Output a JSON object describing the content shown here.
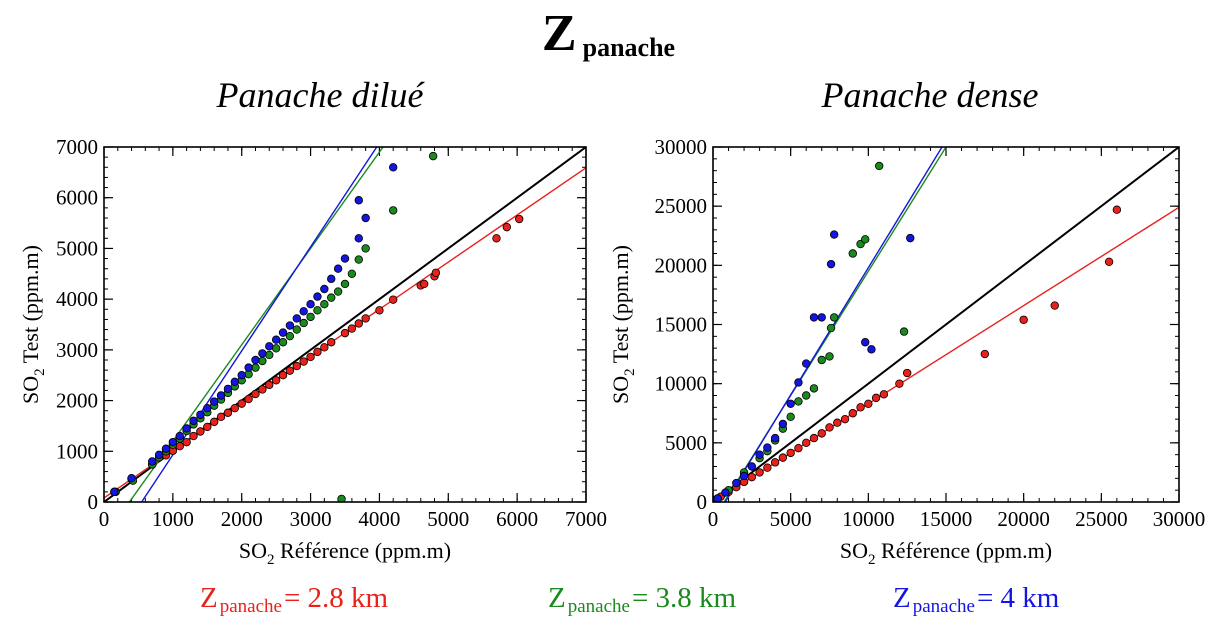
{
  "title": {
    "main": "Z",
    "sub": "panache"
  },
  "chart_data": [
    {
      "type": "scatter",
      "title": "Panache dilué",
      "xlabel_prefix": "SO",
      "xlabel_sub": "2",
      "xlabel_suffix": " Référence (ppm.m)",
      "ylabel_prefix": "SO",
      "ylabel_sub": "2",
      "ylabel_suffix": " Test (ppm.m)",
      "xlim": [
        0,
        7000
      ],
      "ylim": [
        0,
        7000
      ],
      "xticks": [
        0,
        1000,
        2000,
        3000,
        4000,
        5000,
        6000,
        7000
      ],
      "yticks": [
        0,
        1000,
        2000,
        3000,
        4000,
        5000,
        6000,
        7000
      ],
      "series": [
        {
          "name": "Z panache = 2.8 km",
          "color": "#e8211b",
          "slope": 0.93,
          "intercept": 80,
          "points": [
            [
              150,
              200
            ],
            [
              400,
              450
            ],
            [
              700,
              740
            ],
            [
              900,
              920
            ],
            [
              1000,
              1010
            ],
            [
              1100,
              1100
            ],
            [
              1200,
              1180
            ],
            [
              1300,
              1300
            ],
            [
              1400,
              1390
            ],
            [
              1500,
              1480
            ],
            [
              1600,
              1580
            ],
            [
              1700,
              1680
            ],
            [
              1800,
              1760
            ],
            [
              1900,
              1850
            ],
            [
              2000,
              1940
            ],
            [
              2100,
              2030
            ],
            [
              2200,
              2130
            ],
            [
              2300,
              2220
            ],
            [
              2400,
              2310
            ],
            [
              2500,
              2400
            ],
            [
              2600,
              2500
            ],
            [
              2700,
              2590
            ],
            [
              2800,
              2680
            ],
            [
              2900,
              2770
            ],
            [
              3000,
              2860
            ],
            [
              3100,
              2960
            ],
            [
              3200,
              3050
            ],
            [
              3300,
              3150
            ],
            [
              3500,
              3330
            ],
            [
              3600,
              3420
            ],
            [
              3700,
              3520
            ],
            [
              3800,
              3620
            ],
            [
              4000,
              3780
            ],
            [
              4200,
              3990
            ],
            [
              4600,
              4270
            ],
            [
              4650,
              4300
            ],
            [
              4800,
              4450
            ],
            [
              4820,
              4520
            ],
            [
              5700,
              5200
            ],
            [
              5850,
              5420
            ],
            [
              6030,
              5580
            ]
          ]
        },
        {
          "name": "Z panache = 3.8 km",
          "color": "#1a8a1f",
          "slope": 1.9,
          "intercept": -700,
          "points": [
            [
              170,
              200
            ],
            [
              420,
              420
            ],
            [
              700,
              740
            ],
            [
              800,
              880
            ],
            [
              900,
              1000
            ],
            [
              1000,
              1130
            ],
            [
              1100,
              1250
            ],
            [
              1200,
              1400
            ],
            [
              1300,
              1530
            ],
            [
              1400,
              1650
            ],
            [
              1500,
              1770
            ],
            [
              1600,
              1900
            ],
            [
              1700,
              2020
            ],
            [
              1800,
              2150
            ],
            [
              1900,
              2280
            ],
            [
              2000,
              2400
            ],
            [
              2100,
              2520
            ],
            [
              2200,
              2650
            ],
            [
              2300,
              2780
            ],
            [
              2400,
              2900
            ],
            [
              2500,
              3030
            ],
            [
              2600,
              3150
            ],
            [
              2700,
              3270
            ],
            [
              2800,
              3400
            ],
            [
              2900,
              3530
            ],
            [
              3000,
              3650
            ],
            [
              3100,
              3780
            ],
            [
              3200,
              3900
            ],
            [
              3300,
              4030
            ],
            [
              3400,
              4150
            ],
            [
              3500,
              4300
            ],
            [
              3600,
              4500
            ],
            [
              3700,
              4780
            ],
            [
              3800,
              5000
            ],
            [
              4200,
              5750
            ],
            [
              4780,
              6820
            ],
            [
              3450,
              60
            ]
          ]
        },
        {
          "name": "Z panache = 4 km",
          "color": "#1515e0",
          "slope": 2.05,
          "intercept": -1120,
          "points": [
            [
              150,
              200
            ],
            [
              400,
              470
            ],
            [
              700,
              800
            ],
            [
              800,
              930
            ],
            [
              900,
              1050
            ],
            [
              1000,
              1180
            ],
            [
              1100,
              1300
            ],
            [
              1200,
              1450
            ],
            [
              1300,
              1600
            ],
            [
              1400,
              1720
            ],
            [
              1500,
              1850
            ],
            [
              1600,
              1980
            ],
            [
              1700,
              2100
            ],
            [
              1800,
              2230
            ],
            [
              1900,
              2370
            ],
            [
              2000,
              2500
            ],
            [
              2100,
              2650
            ],
            [
              2200,
              2800
            ],
            [
              2300,
              2930
            ],
            [
              2400,
              3070
            ],
            [
              2500,
              3200
            ],
            [
              2600,
              3340
            ],
            [
              2700,
              3480
            ],
            [
              2800,
              3620
            ],
            [
              2900,
              3760
            ],
            [
              3000,
              3900
            ],
            [
              3100,
              4050
            ],
            [
              3200,
              4200
            ],
            [
              3300,
              4400
            ],
            [
              3400,
              4600
            ],
            [
              3500,
              4800
            ],
            [
              3700,
              5200
            ],
            [
              3800,
              5600
            ],
            [
              3700,
              5950
            ],
            [
              4200,
              6600
            ]
          ]
        },
        {
          "name": "",
          "color": "#000000",
          "slope": 1,
          "intercept": 0,
          "points": []
        }
      ]
    },
    {
      "type": "scatter",
      "title": "Panache dense",
      "xlabel_prefix": "SO",
      "xlabel_sub": "2",
      "xlabel_suffix": " Référence (ppm.m)",
      "ylabel_prefix": "SO",
      "ylabel_sub": "2",
      "ylabel_suffix": " Test (ppm.m)",
      "xlim": [
        0,
        30000
      ],
      "ylim": [
        0,
        30000
      ],
      "xticks": [
        0,
        5000,
        10000,
        15000,
        20000,
        25000,
        30000
      ],
      "yticks": [
        0,
        5000,
        10000,
        15000,
        20000,
        25000,
        30000
      ],
      "series": [
        {
          "name": "Z panache = 2.8 km",
          "color": "#e8211b",
          "slope": 0.83,
          "intercept": 0,
          "points": [
            [
              200,
              200
            ],
            [
              500,
              450
            ],
            [
              1000,
              850
            ],
            [
              1500,
              1250
            ],
            [
              2000,
              1700
            ],
            [
              2500,
              2100
            ],
            [
              3000,
              2500
            ],
            [
              3500,
              2900
            ],
            [
              4000,
              3350
            ],
            [
              4500,
              3750
            ],
            [
              5000,
              4150
            ],
            [
              5500,
              4550
            ],
            [
              6000,
              5000
            ],
            [
              6500,
              5400
            ],
            [
              7000,
              5800
            ],
            [
              7500,
              6300
            ],
            [
              8000,
              6700
            ],
            [
              8500,
              7000
            ],
            [
              9000,
              7500
            ],
            [
              9500,
              8000
            ],
            [
              10000,
              8300
            ],
            [
              10500,
              8800
            ],
            [
              11000,
              9100
            ],
            [
              12000,
              10000
            ],
            [
              12500,
              10900
            ],
            [
              17500,
              12500
            ],
            [
              20000,
              15400
            ],
            [
              22000,
              16600
            ],
            [
              25500,
              20300
            ],
            [
              26000,
              24700
            ]
          ]
        },
        {
          "name": "Z panache = 3.8 km",
          "color": "#1a8a1f",
          "slope": 2.1,
          "intercept": -1500,
          "points": [
            [
              300,
              300
            ],
            [
              1000,
              1000
            ],
            [
              2000,
              2500
            ],
            [
              3000,
              3700
            ],
            [
              3500,
              4300
            ],
            [
              4000,
              5200
            ],
            [
              4500,
              6200
            ],
            [
              5000,
              7200
            ],
            [
              5500,
              8500
            ],
            [
              6000,
              9000
            ],
            [
              6500,
              9600
            ],
            [
              7000,
              12000
            ],
            [
              7500,
              12300
            ],
            [
              7800,
              15600
            ],
            [
              7600,
              14700
            ],
            [
              9000,
              21000
            ],
            [
              9500,
              21800
            ],
            [
              9800,
              22200
            ],
            [
              10700,
              28400
            ],
            [
              12300,
              14400
            ]
          ]
        },
        {
          "name": "Z panache = 4 km",
          "color": "#1515e0",
          "slope": 2.15,
          "intercept": -1700,
          "points": [
            [
              300,
              300
            ],
            [
              800,
              800
            ],
            [
              1500,
              1600
            ],
            [
              2000,
              2200
            ],
            [
              2500,
              3000
            ],
            [
              3000,
              4000
            ],
            [
              3500,
              4600
            ],
            [
              4000,
              5400
            ],
            [
              4500,
              6600
            ],
            [
              5000,
              8300
            ],
            [
              5500,
              10100
            ],
            [
              6000,
              11700
            ],
            [
              6500,
              15600
            ],
            [
              7000,
              15600
            ],
            [
              7600,
              20100
            ],
            [
              7800,
              22600
            ],
            [
              9800,
              13500
            ],
            [
              10200,
              12900
            ],
            [
              12700,
              22300
            ]
          ]
        },
        {
          "name": "",
          "color": "#000000",
          "slope": 1,
          "intercept": 0,
          "points": []
        }
      ]
    }
  ],
  "legend": [
    {
      "prefix": "Z",
      "sub": "panache",
      "value": "= 2.8 km",
      "color": "#e8211b"
    },
    {
      "prefix": "Z",
      "sub": "panache",
      "value": "= 3.8 km",
      "color": "#1a8a1f"
    },
    {
      "prefix": "Z",
      "sub": "panache",
      "value": "= 4 km",
      "color": "#1515e0"
    }
  ]
}
